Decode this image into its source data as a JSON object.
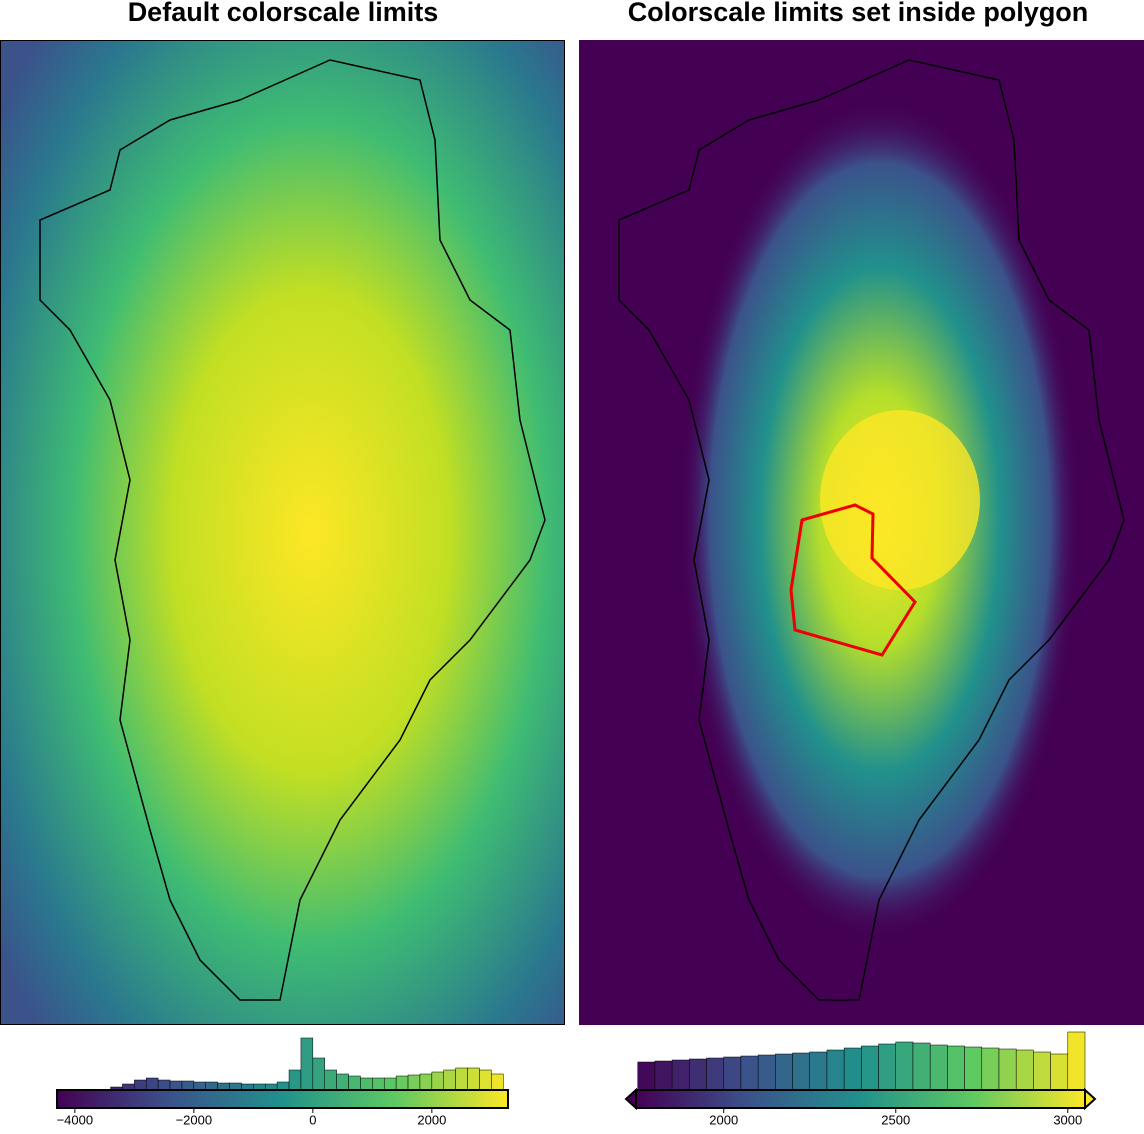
{
  "panels": [
    {
      "title": "Default colorscale limits",
      "colorbar": {
        "lim": [
          -4300,
          3280
        ],
        "extend": false,
        "ticks": [
          {
            "value": -4000,
            "label": "−4000"
          },
          {
            "value": -2000,
            "label": "−2000"
          },
          0,
          2000
        ]
      },
      "histogram": {
        "bins": [
          -3400,
          -3200,
          -3000,
          -2800,
          -2600,
          -2400,
          -2200,
          -2000,
          -1800,
          -1600,
          -1400,
          -1200,
          -1000,
          -800,
          -600,
          -400,
          -200,
          0,
          200,
          400,
          600,
          800,
          1000,
          1200,
          1400,
          1600,
          1800,
          2000,
          2200,
          2400,
          2600,
          2800,
          3000,
          3200
        ],
        "counts": [
          3,
          6,
          10,
          12,
          10,
          9,
          9,
          8,
          8,
          7,
          7,
          6,
          6,
          6,
          8,
          20,
          52,
          32,
          20,
          16,
          14,
          12,
          12,
          12,
          14,
          15,
          16,
          18,
          20,
          22,
          22,
          20,
          16
        ]
      }
    },
    {
      "title": "Colorscale limits set inside polygon",
      "colorbar": {
        "lim": [
          1745,
          3050
        ],
        "extend": true,
        "ticks": [
          2000,
          2500,
          3000
        ]
      },
      "histogram": {
        "bins": [
          1750,
          1800,
          1850,
          1900,
          1950,
          2000,
          2050,
          2100,
          2150,
          2200,
          2250,
          2300,
          2350,
          2400,
          2450,
          2500,
          2550,
          2600,
          2650,
          2700,
          2750,
          2800,
          2850,
          2900,
          2950,
          3000,
          3050
        ],
        "counts": [
          28,
          29,
          30,
          31,
          32,
          33,
          34,
          35,
          36,
          37,
          38,
          40,
          42,
          44,
          46,
          48,
          47,
          45,
          44,
          43,
          42,
          41,
          40,
          38,
          36,
          58
        ]
      }
    }
  ]
}
